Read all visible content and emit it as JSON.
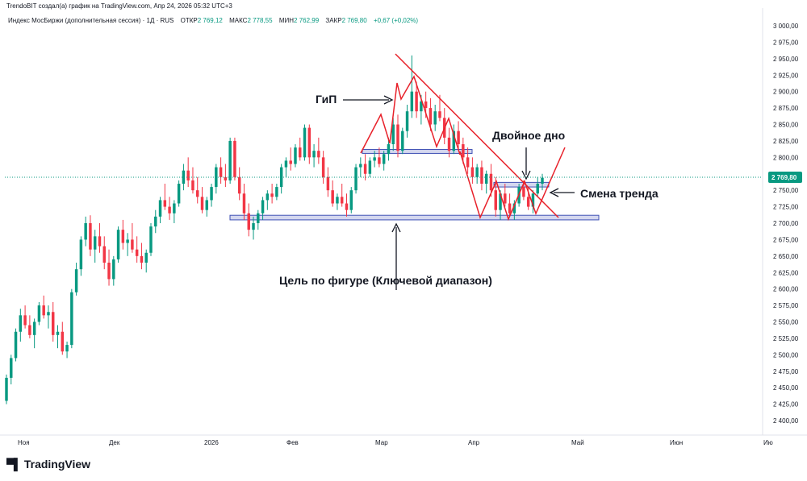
{
  "header": {
    "credit": "TrendoBIT создал(а) график на TradingView.com, Апр 24, 2026 05:32 UTC+3"
  },
  "legend": {
    "instrument": "Индекс МосБиржи (дополнительная сессия) · 1Д · RUS",
    "open_label": "ОТКР",
    "open_value": "2 769,12",
    "high_label": "МАКС",
    "high_value": "2 778,55",
    "low_label": "МИН",
    "low_value": "2 762,99",
    "close_label": "ЗАКР",
    "close_value": "2 769,80",
    "change": "+0,67 (+0,02%)"
  },
  "annotations": {
    "gip": "ГиП",
    "double_bottom": "Двойное дно",
    "trend_change": "Смена тренда",
    "target": "Цель по фигуре (Ключевой диапазон)"
  },
  "footer": {
    "brand": "TradingView"
  },
  "colors": {
    "up": "#089981",
    "down": "#f23645",
    "pattern": "#e8212a",
    "zone_fill": "#c5cae9",
    "zone_border": "#3f51b5",
    "price_tag": "#089981"
  },
  "chart_data": {
    "type": "candlestick",
    "y_ticks": [
      2400,
      2425,
      2450,
      2475,
      2500,
      2525,
      2550,
      2575,
      2600,
      2625,
      2650,
      2675,
      2700,
      2725,
      2750,
      2775,
      2800,
      2825,
      2850,
      2875,
      2900,
      2925,
      2950,
      2975,
      3000
    ],
    "y_tick_labels": [
      "2 400,00",
      "2 425,00",
      "2 450,00",
      "2 475,00",
      "2 500,00",
      "2 525,00",
      "2 550,00",
      "2 575,00",
      "2 600,00",
      "2 625,00",
      "2 650,00",
      "2 675,00",
      "2 700,00",
      "2 725,00",
      "2 750,00",
      "2 775,00",
      "2 800,00",
      "2 825,00",
      "2 850,00",
      "2 875,00",
      "2 900,00",
      "2 925,00",
      "2 950,00",
      "2 975,00",
      "3 000,00"
    ],
    "ylim": [
      2380,
      3010
    ],
    "x_labels": [
      "Ноя",
      "Дек",
      "2026",
      "Фев",
      "Мар",
      "Апр",
      "Май",
      "Июн",
      "Ию"
    ],
    "last_price_label": "2 769,80",
    "last_price": 2769.8,
    "key_levels": [
      {
        "name": "target-zone",
        "low": 2705,
        "high": 2712
      },
      {
        "name": "neckline-zone",
        "low": 2806,
        "high": 2812
      },
      {
        "name": "double-bottom-zone",
        "low": 2755,
        "high": 2762
      }
    ],
    "candles": [
      [
        2430,
        2470,
        2425,
        2465
      ],
      [
        2465,
        2500,
        2455,
        2495
      ],
      [
        2495,
        2540,
        2490,
        2535
      ],
      [
        2535,
        2570,
        2520,
        2560
      ],
      [
        2560,
        2575,
        2540,
        2545
      ],
      [
        2545,
        2560,
        2525,
        2530
      ],
      [
        2530,
        2555,
        2510,
        2550
      ],
      [
        2550,
        2580,
        2545,
        2575
      ],
      [
        2575,
        2590,
        2555,
        2560
      ],
      [
        2560,
        2575,
        2540,
        2565
      ],
      [
        2565,
        2580,
        2520,
        2530
      ],
      [
        2530,
        2545,
        2510,
        2535
      ],
      [
        2535,
        2550,
        2500,
        2505
      ],
      [
        2505,
        2520,
        2495,
        2515
      ],
      [
        2515,
        2600,
        2510,
        2595
      ],
      [
        2595,
        2640,
        2590,
        2630
      ],
      [
        2630,
        2680,
        2620,
        2675
      ],
      [
        2675,
        2710,
        2665,
        2700
      ],
      [
        2700,
        2712,
        2650,
        2660
      ],
      [
        2660,
        2690,
        2640,
        2680
      ],
      [
        2680,
        2700,
        2655,
        2665
      ],
      [
        2665,
        2680,
        2630,
        2640
      ],
      [
        2640,
        2660,
        2605,
        2615
      ],
      [
        2615,
        2650,
        2605,
        2645
      ],
      [
        2645,
        2695,
        2640,
        2690
      ],
      [
        2690,
        2705,
        2660,
        2670
      ],
      [
        2670,
        2685,
        2650,
        2675
      ],
      [
        2675,
        2700,
        2655,
        2660
      ],
      [
        2660,
        2680,
        2640,
        2650
      ],
      [
        2650,
        2670,
        2630,
        2640
      ],
      [
        2640,
        2660,
        2625,
        2655
      ],
      [
        2655,
        2700,
        2650,
        2695
      ],
      [
        2695,
        2720,
        2685,
        2710
      ],
      [
        2710,
        2740,
        2700,
        2735
      ],
      [
        2735,
        2760,
        2720,
        2725
      ],
      [
        2725,
        2740,
        2705,
        2715
      ],
      [
        2715,
        2735,
        2700,
        2730
      ],
      [
        2730,
        2765,
        2725,
        2760
      ],
      [
        2760,
        2790,
        2750,
        2780
      ],
      [
        2780,
        2800,
        2755,
        2765
      ],
      [
        2765,
        2785,
        2745,
        2750
      ],
      [
        2750,
        2770,
        2730,
        2740
      ],
      [
        2740,
        2755,
        2715,
        2720
      ],
      [
        2720,
        2740,
        2710,
        2735
      ],
      [
        2735,
        2760,
        2725,
        2755
      ],
      [
        2755,
        2790,
        2745,
        2785
      ],
      [
        2785,
        2800,
        2760,
        2770
      ],
      [
        2770,
        2790,
        2755,
        2765
      ],
      [
        2765,
        2830,
        2760,
        2825
      ],
      [
        2825,
        2830,
        2765,
        2770
      ],
      [
        2770,
        2785,
        2735,
        2745
      ],
      [
        2745,
        2760,
        2705,
        2715
      ],
      [
        2715,
        2730,
        2680,
        2690
      ],
      [
        2690,
        2710,
        2675,
        2700
      ],
      [
        2700,
        2720,
        2690,
        2715
      ],
      [
        2715,
        2740,
        2705,
        2735
      ],
      [
        2735,
        2750,
        2720,
        2745
      ],
      [
        2745,
        2760,
        2730,
        2740
      ],
      [
        2740,
        2760,
        2735,
        2755
      ],
      [
        2755,
        2790,
        2745,
        2785
      ],
      [
        2785,
        2800,
        2770,
        2795
      ],
      [
        2795,
        2815,
        2780,
        2790
      ],
      [
        2790,
        2820,
        2785,
        2815
      ],
      [
        2815,
        2830,
        2795,
        2800
      ],
      [
        2800,
        2850,
        2795,
        2845
      ],
      [
        2845,
        2850,
        2790,
        2800
      ],
      [
        2800,
        2820,
        2785,
        2810
      ],
      [
        2810,
        2830,
        2790,
        2800
      ],
      [
        2800,
        2810,
        2760,
        2770
      ],
      [
        2770,
        2785,
        2740,
        2750
      ],
      [
        2750,
        2765,
        2725,
        2730
      ],
      [
        2730,
        2745,
        2720,
        2740
      ],
      [
        2740,
        2760,
        2725,
        2730
      ],
      [
        2730,
        2745,
        2710,
        2720
      ],
      [
        2720,
        2755,
        2715,
        2750
      ],
      [
        2750,
        2790,
        2745,
        2785
      ],
      [
        2785,
        2800,
        2770,
        2790
      ],
      [
        2790,
        2805,
        2765,
        2775
      ],
      [
        2775,
        2800,
        2770,
        2795
      ],
      [
        2795,
        2810,
        2785,
        2800
      ],
      [
        2800,
        2815,
        2785,
        2790
      ],
      [
        2790,
        2810,
        2780,
        2805
      ],
      [
        2805,
        2830,
        2795,
        2820
      ],
      [
        2820,
        2860,
        2810,
        2850
      ],
      [
        2850,
        2865,
        2800,
        2810
      ],
      [
        2810,
        2845,
        2805,
        2840
      ],
      [
        2840,
        2880,
        2830,
        2870
      ],
      [
        2870,
        2955,
        2860,
        2900
      ],
      [
        2900,
        2915,
        2860,
        2870
      ],
      [
        2870,
        2895,
        2850,
        2885
      ],
      [
        2885,
        2900,
        2860,
        2875
      ],
      [
        2875,
        2890,
        2840,
        2850
      ],
      [
        2850,
        2880,
        2840,
        2870
      ],
      [
        2870,
        2895,
        2855,
        2860
      ],
      [
        2860,
        2875,
        2820,
        2830
      ],
      [
        2830,
        2845,
        2800,
        2810
      ],
      [
        2810,
        2850,
        2805,
        2840
      ],
      [
        2840,
        2855,
        2810,
        2820
      ],
      [
        2820,
        2830,
        2790,
        2800
      ],
      [
        2800,
        2815,
        2775,
        2785
      ],
      [
        2785,
        2800,
        2760,
        2770
      ],
      [
        2770,
        2790,
        2760,
        2785
      ],
      [
        2785,
        2795,
        2750,
        2760
      ],
      [
        2760,
        2780,
        2745,
        2775
      ],
      [
        2775,
        2790,
        2740,
        2750
      ],
      [
        2750,
        2770,
        2710,
        2720
      ],
      [
        2720,
        2750,
        2705,
        2745
      ],
      [
        2745,
        2760,
        2725,
        2730
      ],
      [
        2730,
        2745,
        2710,
        2715
      ],
      [
        2715,
        2735,
        2705,
        2730
      ],
      [
        2730,
        2760,
        2725,
        2755
      ],
      [
        2755,
        2765,
        2735,
        2740
      ],
      [
        2740,
        2755,
        2720,
        2725
      ],
      [
        2725,
        2750,
        2715,
        2745
      ],
      [
        2745,
        2770,
        2740,
        2760
      ],
      [
        2760,
        2775,
        2750,
        2769
      ]
    ]
  }
}
